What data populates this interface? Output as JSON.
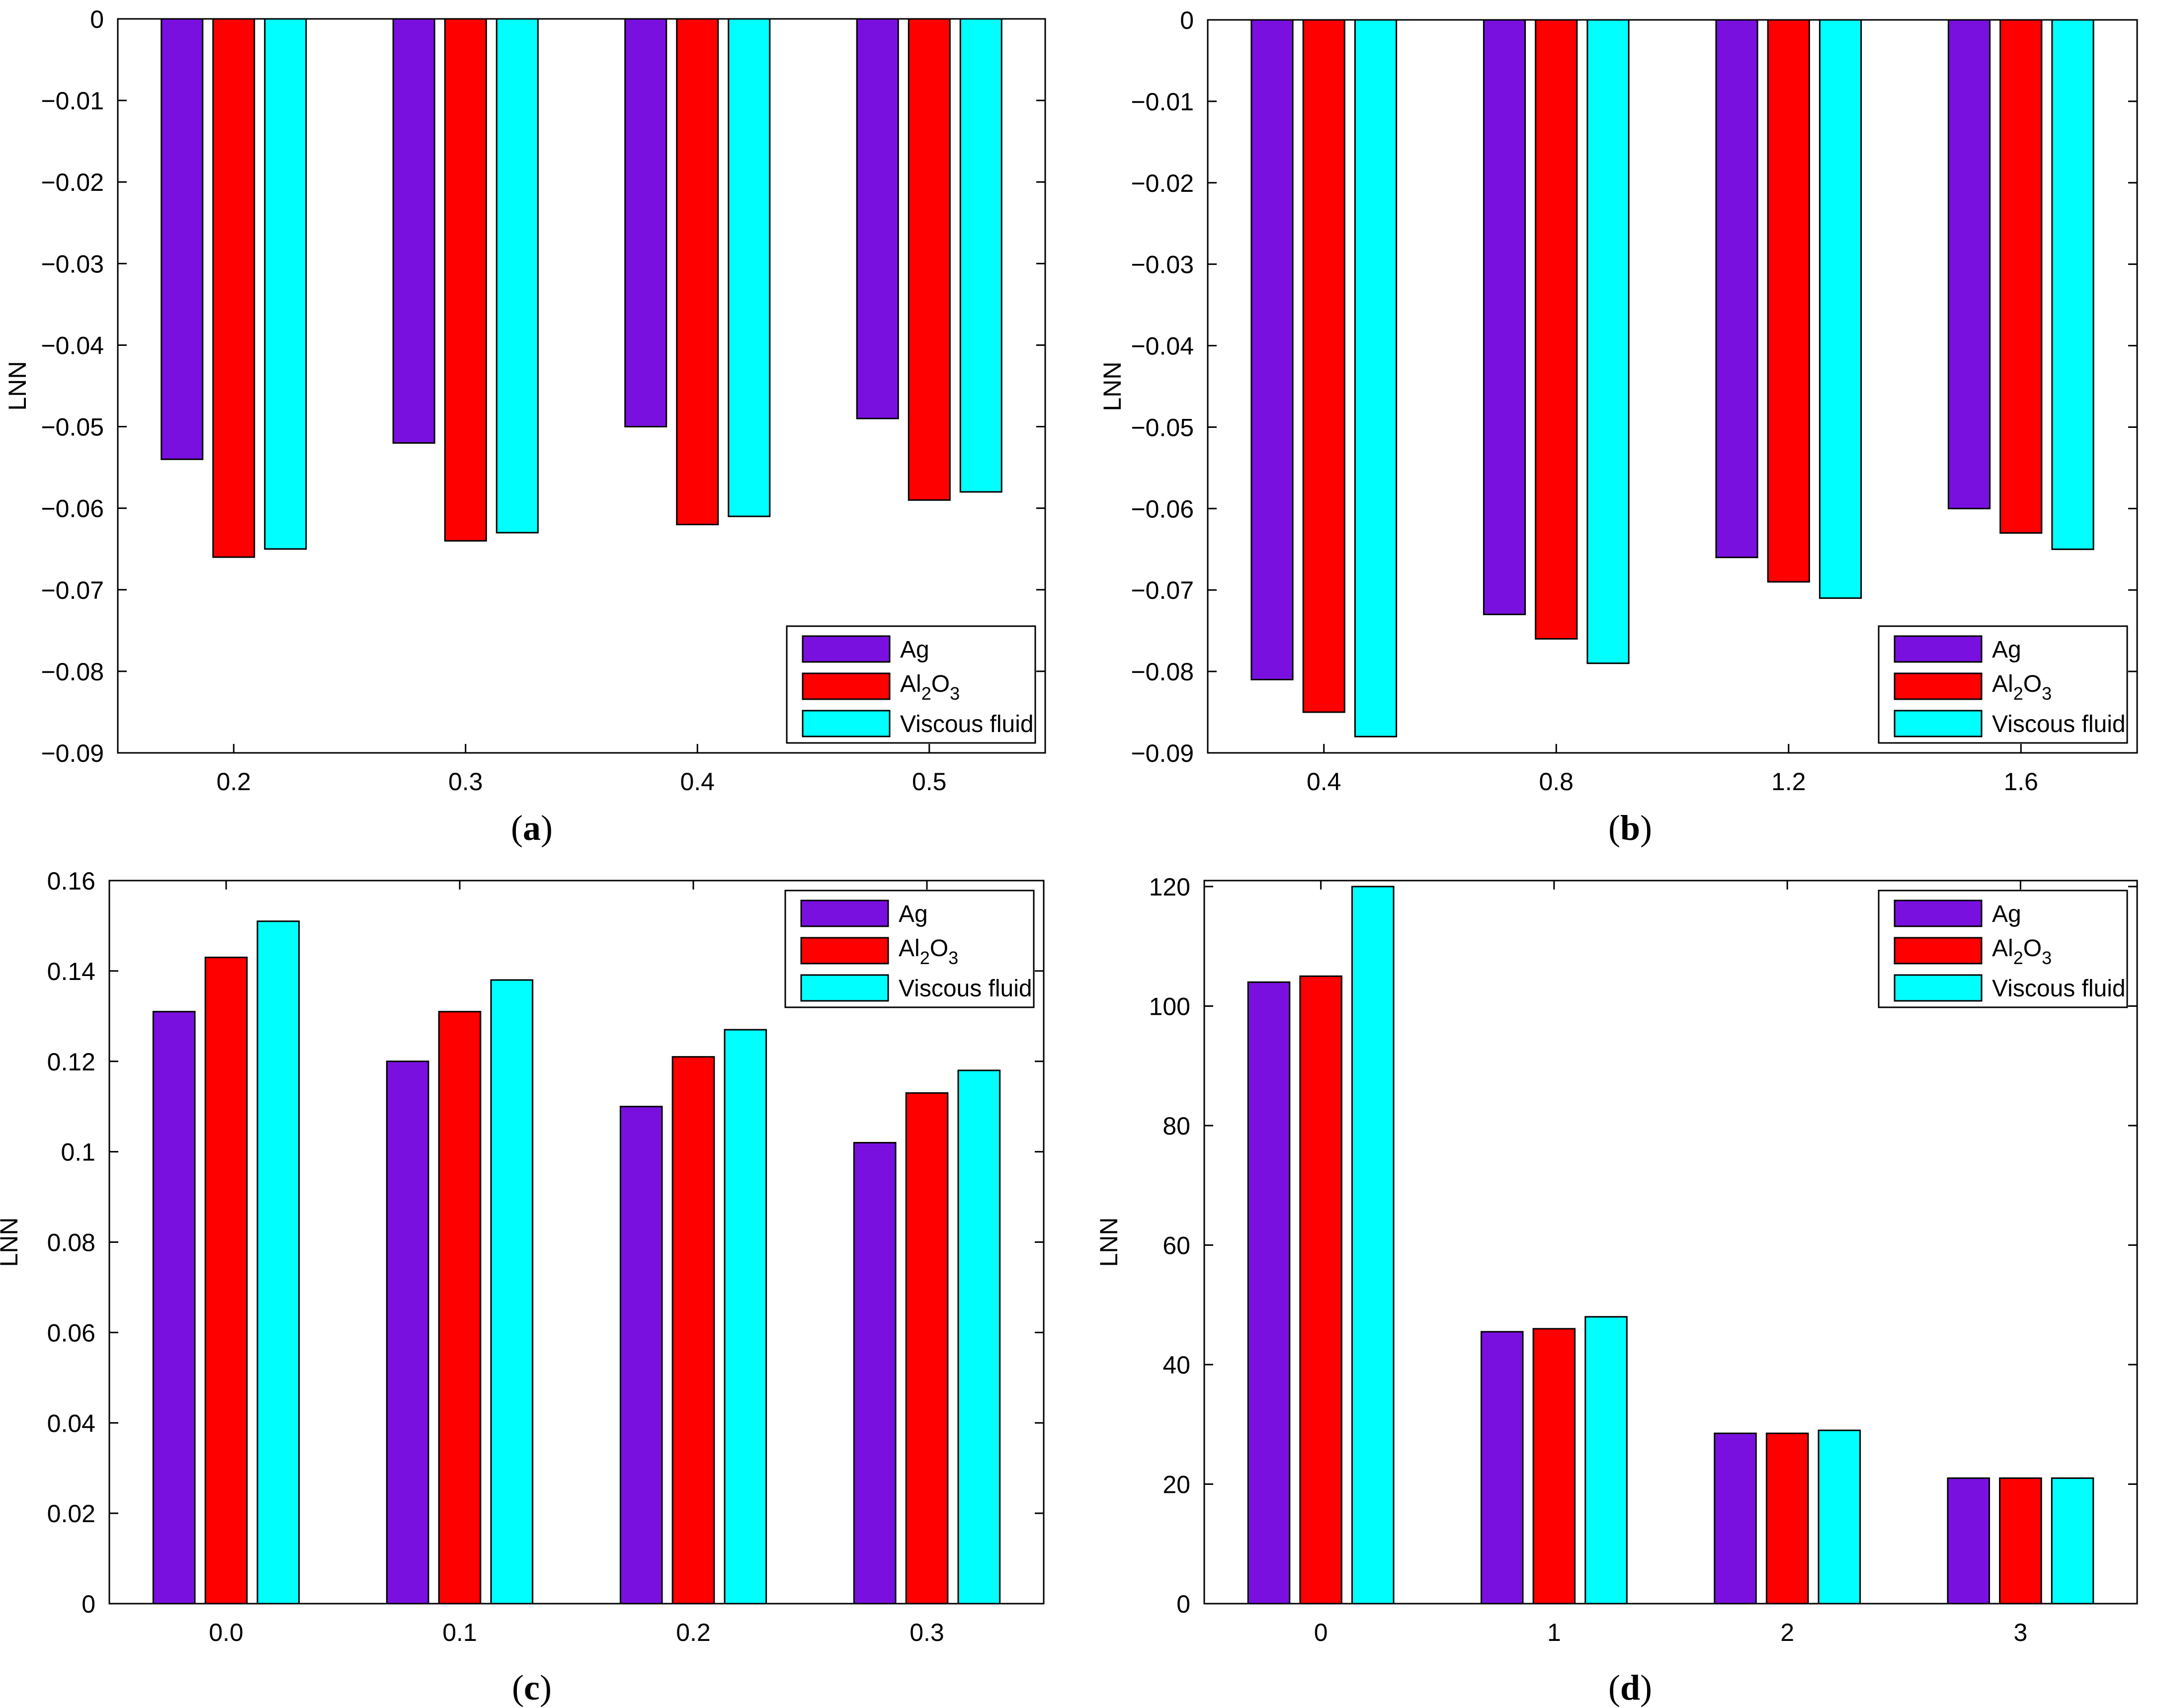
{
  "chart_data": [
    {
      "panel": "a",
      "type": "bar",
      "caption": {
        "open": "(",
        "letter": "a",
        "close": ")"
      },
      "xlabel": "",
      "ylabel": "LNN",
      "categories": [
        "0.2",
        "0.3",
        "0.4",
        "0.5"
      ],
      "ylim": [
        -0.09,
        0
      ],
      "yticks": [
        0,
        -0.01,
        -0.02,
        -0.03,
        -0.04,
        -0.05,
        -0.06,
        -0.07,
        -0.08,
        -0.09
      ],
      "ytick_labels": [
        "0",
        "−0.01",
        "−0.02",
        "−0.03",
        "−0.04",
        "−0.05",
        "−0.06",
        "−0.07",
        "−0.08",
        "−0.09"
      ],
      "legend_position": "bottom-right",
      "series": [
        {
          "name": "Ag",
          "values": [
            -0.054,
            -0.052,
            -0.05,
            -0.049
          ]
        },
        {
          "name": "Al2O3",
          "values": [
            -0.066,
            -0.064,
            -0.062,
            -0.059
          ]
        },
        {
          "name": "Viscous fluid",
          "values": [
            -0.065,
            -0.063,
            -0.061,
            -0.058
          ]
        }
      ]
    },
    {
      "panel": "b",
      "type": "bar",
      "caption": {
        "open": "(",
        "letter": "b",
        "close": ")"
      },
      "xlabel": "",
      "ylabel": "LNN",
      "categories": [
        "0.4",
        "0.8",
        "1.2",
        "1.6"
      ],
      "ylim": [
        -0.09,
        0
      ],
      "yticks": [
        0,
        -0.01,
        -0.02,
        -0.03,
        -0.04,
        -0.05,
        -0.06,
        -0.07,
        -0.08,
        -0.09
      ],
      "ytick_labels": [
        "0",
        "−0.01",
        "−0.02",
        "−0.03",
        "−0.04",
        "−0.05",
        "−0.06",
        "−0.07",
        "−0.08",
        "−0.09"
      ],
      "legend_position": "bottom-right",
      "series": [
        {
          "name": "Ag",
          "values": [
            -0.081,
            -0.073,
            -0.066,
            -0.06
          ]
        },
        {
          "name": "Al2O3",
          "values": [
            -0.085,
            -0.076,
            -0.069,
            -0.063
          ]
        },
        {
          "name": "Viscous fluid",
          "values": [
            -0.088,
            -0.079,
            -0.071,
            -0.065
          ]
        }
      ]
    },
    {
      "panel": "c",
      "type": "bar",
      "caption": {
        "open": "(",
        "letter": "c",
        "close": ")"
      },
      "xlabel": "",
      "ylabel": "LNN",
      "categories": [
        "0.0",
        "0.1",
        "0.2",
        "0.3"
      ],
      "ylim": [
        0,
        0.16
      ],
      "yticks": [
        0,
        0.02,
        0.04,
        0.06,
        0.08,
        0.1,
        0.12,
        0.14,
        0.16
      ],
      "ytick_labels": [
        "0",
        "0.02",
        "0.04",
        "0.06",
        "0.08",
        "0.1",
        "0.12",
        "0.14",
        "0.16"
      ],
      "legend_position": "top-right",
      "series": [
        {
          "name": "Ag",
          "values": [
            0.131,
            0.12,
            0.11,
            0.102
          ]
        },
        {
          "name": "Al2O3",
          "values": [
            0.143,
            0.131,
            0.121,
            0.113
          ]
        },
        {
          "name": "Viscous fluid",
          "values": [
            0.151,
            0.138,
            0.127,
            0.118
          ]
        }
      ]
    },
    {
      "panel": "d",
      "type": "bar",
      "caption": {
        "open": "(",
        "letter": "d",
        "close": ")"
      },
      "xlabel": "",
      "ylabel": "LNN",
      "categories": [
        "0",
        "1",
        "2",
        "3"
      ],
      "ylim": [
        0,
        121
      ],
      "yticks": [
        0,
        20,
        40,
        60,
        80,
        100,
        120
      ],
      "ytick_labels": [
        "0",
        "20",
        "40",
        "60",
        "80",
        "100",
        "120"
      ],
      "legend_position": "top-right",
      "series": [
        {
          "name": "Ag",
          "values": [
            104,
            45.5,
            28.5,
            21
          ]
        },
        {
          "name": "Al2O3",
          "values": [
            105,
            46,
            28.5,
            21
          ]
        },
        {
          "name": "Viscous fluid",
          "values": [
            120,
            48,
            29,
            21
          ]
        }
      ]
    }
  ],
  "colors": {
    "Ag": "#7a10e0",
    "Al2O3": "#ff0000",
    "Viscous fluid": "#00ffff",
    "axis": "#000000",
    "background": "#ffffff"
  },
  "legend_labels": {
    "ag": "Ag",
    "al2o3": {
      "base": "Al",
      "sub1": "2",
      "mid": "O",
      "sub2": "3"
    },
    "viscous": "Viscous fluid"
  }
}
